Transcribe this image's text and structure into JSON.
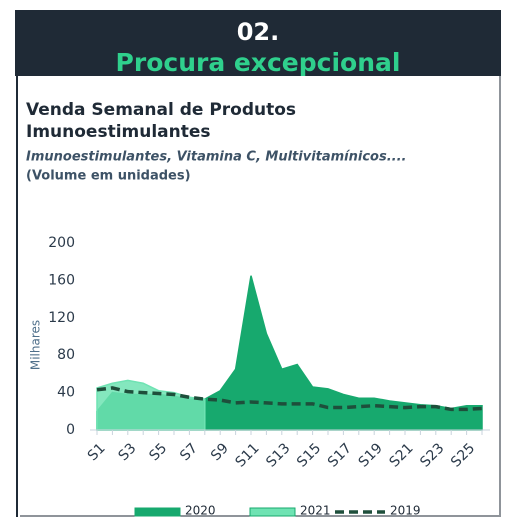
{
  "header": {
    "number": "02.",
    "title": "Procura excepcional"
  },
  "chart_data": {
    "type": "line",
    "title_lines": [
      "Venda Semanal de Produtos",
      "Imunoestimulantes"
    ],
    "subtitle": "Imunoestimulantes, Vitamina C, Multivitamínicos....",
    "note": "(Volume em unidades)",
    "y_label": "Milhares",
    "categories": [
      "S1",
      null,
      "S3",
      null,
      "S5",
      null,
      "S7",
      null,
      "S9",
      null,
      "S11",
      null,
      "S13",
      null,
      "S15",
      null,
      "S17",
      null,
      "S19",
      null,
      "S21",
      null,
      "S23",
      null,
      "S25",
      null
    ],
    "series": [
      {
        "name": "2020",
        "color": "#17a96e",
        "filled": true,
        "dashed": false,
        "values": [
          20,
          40,
          38,
          38,
          38,
          36,
          33,
          33,
          42,
          65,
          165,
          103,
          65,
          70,
          46,
          44,
          38,
          34,
          34,
          31,
          29,
          27,
          26,
          23,
          26,
          26
        ]
      },
      {
        "name": "2021",
        "color": "#6fe3b3",
        "filled": true,
        "dashed": false,
        "values": [
          45,
          50,
          53,
          50,
          42,
          40,
          35,
          33,
          null,
          null,
          null,
          null,
          null,
          null,
          null,
          null,
          null,
          null,
          null,
          null,
          null,
          null,
          null,
          null,
          null,
          null
        ]
      },
      {
        "name": "2019",
        "color": "#1e4f3b",
        "filled": false,
        "dashed": true,
        "values": [
          43,
          45,
          41,
          40,
          39,
          38,
          35,
          33,
          32,
          29,
          30,
          29,
          28,
          28,
          28,
          24,
          24,
          25,
          26,
          25,
          24,
          25,
          25,
          22,
          22,
          23
        ]
      }
    ],
    "ylim": [
      0,
      200
    ],
    "yticks": [
      0,
      40,
      80,
      120,
      160,
      200
    ],
    "grid": false,
    "legend": "bottom"
  }
}
